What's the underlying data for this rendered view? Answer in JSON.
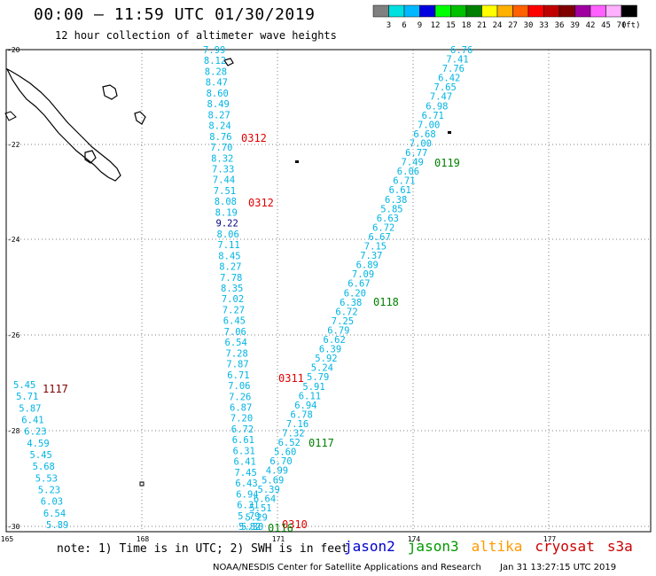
{
  "header": {
    "title": "00:00 – 11:59 UTC 01/30/2019",
    "subtitle": "12 hour collection of altimeter wave heights"
  },
  "colorbar": {
    "unit": "(ft)",
    "colors": [
      "#808080",
      "#00e0e0",
      "#00b8ff",
      "#0000e0",
      "#00ff00",
      "#00c000",
      "#008000",
      "#ffff00",
      "#ffb000",
      "#ff6000",
      "#ff0000",
      "#c00000",
      "#800000",
      "#a000a0",
      "#ff60ff",
      "#ffb0ff",
      "#000000"
    ],
    "labels": [
      "3",
      "6",
      "9",
      "12",
      "15",
      "18",
      "21",
      "24",
      "27",
      "30",
      "33",
      "36",
      "39",
      "42",
      "45",
      "70"
    ]
  },
  "axes": {
    "lon_labels": [
      "165",
      "168",
      "171",
      "174",
      "177"
    ],
    "lat_labels": [
      "-20",
      "-22",
      "-24",
      "-26",
      "-28",
      "-30"
    ]
  },
  "colors": {
    "cyan": "#00b4e4",
    "navy": "#000080",
    "red": "#e00000",
    "green": "#008000",
    "maroon": "#800000"
  },
  "tracks": [
    {
      "id": "west",
      "values": [
        "5.45",
        "5.71",
        "5.87",
        "6.41",
        "6.23",
        "4.59",
        "5.45",
        "5.68",
        "5.53",
        "5.23",
        "6.03",
        "6.54",
        "5.89"
      ]
    },
    {
      "id": "middle",
      "values": [
        "7.99",
        "8.12",
        "8.28",
        "8.47",
        "8.60",
        "8.49",
        "8.27",
        "8.24",
        "8.76",
        "7.70",
        "8.32",
        "7.33",
        "7.44",
        "7.51",
        "8.08",
        "8.19",
        "9.22",
        "8.06",
        "7.11",
        "8.45",
        "8.27",
        "7.78",
        "8.35",
        "7.02",
        "7.27",
        "6.45",
        "7.06",
        "6.54",
        "7.28",
        "7.87",
        "6.71",
        "7.06",
        "7.26",
        "6.87",
        "7.20",
        "6.72",
        "6.61",
        "6.31",
        "6.41",
        "7.45",
        "6.43",
        "6.94",
        "6.31",
        "5.79",
        "5.82"
      ],
      "highlight": {
        "index": 16,
        "color": "navy"
      }
    },
    {
      "id": "east",
      "values": [
        "6.76",
        "7.41",
        "7.76",
        "6.42",
        "7.65",
        "7.47",
        "6.98",
        "6.71",
        "7.00",
        "6.68",
        "7.00",
        "6.77",
        "7.49",
        "6.06",
        "6.71",
        "6.61",
        "6.38",
        "5.85",
        "6.63",
        "6.72",
        "6.67",
        "7.15",
        "7.37",
        "6.89",
        "7.09",
        "6.67",
        "6.20",
        "6.38",
        "6.72",
        "7.25",
        "6.79",
        "6.62",
        "6.39",
        "5.92",
        "5.24",
        "5.79",
        "5.91",
        "6.11",
        "6.94",
        "6.78",
        "7.16",
        "7.32",
        "6.52",
        "5.60",
        "6.70",
        "4.99",
        "5.69",
        "5.39",
        "6.64",
        "5.51",
        "5.29",
        "5.30"
      ]
    }
  ],
  "time_labels": [
    {
      "text": "0312",
      "color": "red"
    },
    {
      "text": "0312",
      "color": "red"
    },
    {
      "text": "0311",
      "color": "red"
    },
    {
      "text": "0310",
      "color": "red"
    },
    {
      "text": "1117",
      "color": "maroon"
    },
    {
      "text": "0119",
      "color": "green"
    },
    {
      "text": "0118",
      "color": "green"
    },
    {
      "text": "0117",
      "color": "green"
    },
    {
      "text": "0116",
      "color": "green"
    }
  ],
  "note": "note: 1) Time is in UTC; 2) SWH is in feet",
  "satellites": [
    {
      "name": "jason2",
      "color": "#0000cc"
    },
    {
      "name": "jason3",
      "color": "#009900"
    },
    {
      "name": "altika",
      "color": "#ff9900"
    },
    {
      "name": "cryosat",
      "color": "#cc0000"
    },
    {
      "name": "s3a",
      "color": "#cc0000"
    }
  ],
  "footer": {
    "credit": "NOAA/NESDIS Center for Satellite Applications and Research",
    "timestamp": "Jan 31 13:27:15 UTC 2019"
  }
}
